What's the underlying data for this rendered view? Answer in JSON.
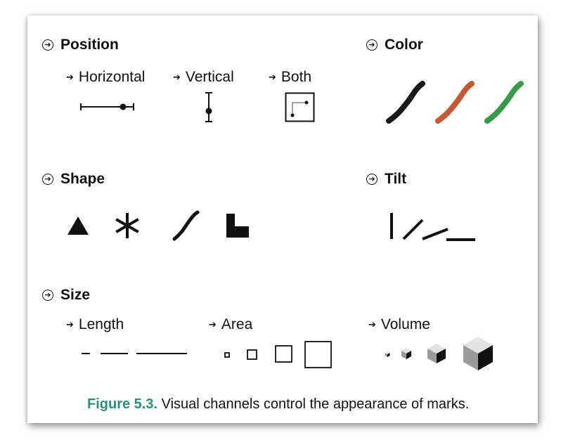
{
  "categories": {
    "position": {
      "icon": "circled-arrow-icon",
      "label": "Position"
    },
    "color": {
      "icon": "circled-arrow-icon",
      "label": "Color"
    },
    "shape": {
      "icon": "circled-arrow-icon",
      "label": "Shape"
    },
    "tilt": {
      "icon": "circled-arrow-icon",
      "label": "Tilt"
    },
    "size": {
      "icon": "circled-arrow-icon",
      "label": "Size"
    }
  },
  "subchannels": {
    "horizontal": "Horizontal",
    "vertical": "Vertical",
    "both": "Both",
    "length": "Length",
    "area": "Area",
    "volume": "Volume"
  },
  "color_swatches": [
    "#1a1a1a",
    "#c45a35",
    "#3a9a4a"
  ],
  "caption": {
    "figure_number": "Figure 5.3.",
    "text": " Visual channels control the appearance of marks."
  }
}
